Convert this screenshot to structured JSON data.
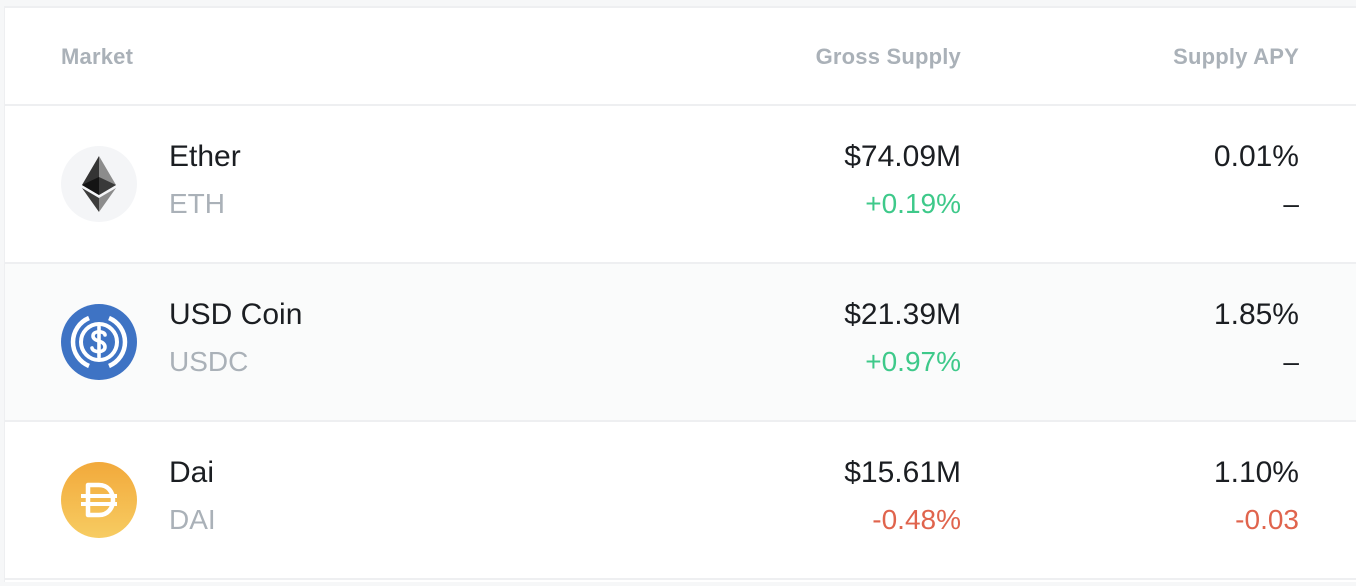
{
  "table": {
    "headers": {
      "market": "Market",
      "gross_supply": "Gross Supply",
      "supply_apy": "Supply APY"
    },
    "rows": [
      {
        "icon": "ether-icon",
        "name": "Ether",
        "symbol": "ETH",
        "gross_supply": "$74.09M",
        "gross_supply_change": "+0.19%",
        "supply_apy": "0.01%",
        "supply_apy_change": "–"
      },
      {
        "icon": "usd-coin-icon",
        "name": "USD Coin",
        "symbol": "USDC",
        "gross_supply": "$21.39M",
        "gross_supply_change": "+0.97%",
        "supply_apy": "1.85%",
        "supply_apy_change": "–"
      },
      {
        "icon": "dai-icon",
        "name": "Dai",
        "symbol": "DAI",
        "gross_supply": "$15.61M",
        "gross_supply_change": "-0.48%",
        "supply_apy": "1.10%",
        "supply_apy_change": "-0.03"
      }
    ]
  },
  "colors": {
    "positive": "#3ec98a",
    "negative": "#e0644d",
    "usdc_blue": "#3e73c4",
    "dai_gold": "#f4b731"
  }
}
